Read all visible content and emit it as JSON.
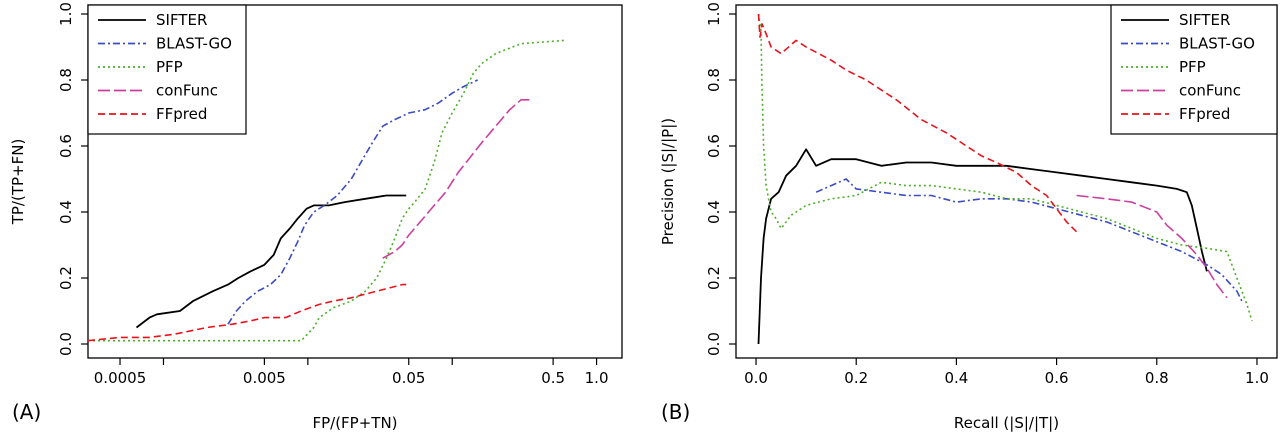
{
  "chart_data": [
    {
      "type": "line",
      "panel_label": "(A)",
      "xlabel": "FP/(FP+TN)",
      "ylabel": "TP/(TP+FN)",
      "xscale": "log",
      "xlim": [
        0.0003,
        1.5
      ],
      "ylim": [
        0,
        1
      ],
      "x_ticks": [
        0.0005,
        0.005,
        0.05,
        0.5,
        1.0
      ],
      "x_tick_labels": [
        "0.0005",
        "0.005",
        "0.05",
        "0.5",
        "1.0"
      ],
      "x_minor_ticks": [
        0.001,
        0.01,
        0.1
      ],
      "y_ticks": [
        0.0,
        0.2,
        0.4,
        0.6,
        0.8,
        1.0
      ],
      "y_tick_labels": [
        "0.0",
        "0.2",
        "0.4",
        "0.6",
        "0.8",
        "1.0"
      ],
      "legend_position": "top-left",
      "series": [
        {
          "name": "SIFTER",
          "color": "#000000",
          "dash": "solid",
          "points": [
            [
              0.00065,
              0.05
            ],
            [
              0.0008,
              0.08
            ],
            [
              0.0009,
              0.09
            ],
            [
              0.0013,
              0.1
            ],
            [
              0.0016,
              0.13
            ],
            [
              0.0022,
              0.16
            ],
            [
              0.0028,
              0.18
            ],
            [
              0.0033,
              0.2
            ],
            [
              0.004,
              0.22
            ],
            [
              0.005,
              0.24
            ],
            [
              0.0058,
              0.27
            ],
            [
              0.0065,
              0.32
            ],
            [
              0.0075,
              0.35
            ],
            [
              0.0085,
              0.38
            ],
            [
              0.0098,
              0.41
            ],
            [
              0.011,
              0.42
            ],
            [
              0.014,
              0.42
            ],
            [
              0.018,
              0.43
            ],
            [
              0.025,
              0.44
            ],
            [
              0.035,
              0.45
            ],
            [
              0.048,
              0.45
            ]
          ]
        },
        {
          "name": "BLAST-GO",
          "color": "#3b4cc0",
          "dash": "dashdot",
          "points": [
            [
              0.0028,
              0.06
            ],
            [
              0.0032,
              0.1
            ],
            [
              0.0037,
              0.13
            ],
            [
              0.0045,
              0.16
            ],
            [
              0.0055,
              0.18
            ],
            [
              0.0065,
              0.21
            ],
            [
              0.0075,
              0.26
            ],
            [
              0.0085,
              0.31
            ],
            [
              0.0095,
              0.36
            ],
            [
              0.011,
              0.4
            ],
            [
              0.013,
              0.42
            ],
            [
              0.016,
              0.45
            ],
            [
              0.02,
              0.5
            ],
            [
              0.024,
              0.56
            ],
            [
              0.028,
              0.61
            ],
            [
              0.033,
              0.66
            ],
            [
              0.04,
              0.68
            ],
            [
              0.05,
              0.7
            ],
            [
              0.065,
              0.71
            ],
            [
              0.08,
              0.73
            ],
            [
              0.1,
              0.76
            ],
            [
              0.12,
              0.78
            ],
            [
              0.15,
              0.8
            ]
          ]
        },
        {
          "name": "PFP",
          "color": "#4caf2a",
          "dash": "dotted",
          "points": [
            [
              0.0003,
              0.01
            ],
            [
              0.001,
              0.01
            ],
            [
              0.003,
              0.01
            ],
            [
              0.006,
              0.01
            ],
            [
              0.009,
              0.01
            ],
            [
              0.011,
              0.05
            ],
            [
              0.012,
              0.08
            ],
            [
              0.015,
              0.11
            ],
            [
              0.02,
              0.13
            ],
            [
              0.025,
              0.16
            ],
            [
              0.03,
              0.2
            ],
            [
              0.035,
              0.26
            ],
            [
              0.04,
              0.32
            ],
            [
              0.045,
              0.38
            ],
            [
              0.05,
              0.41
            ],
            [
              0.055,
              0.43
            ],
            [
              0.065,
              0.47
            ],
            [
              0.075,
              0.55
            ],
            [
              0.085,
              0.64
            ],
            [
              0.1,
              0.7
            ],
            [
              0.12,
              0.76
            ],
            [
              0.14,
              0.82
            ],
            [
              0.16,
              0.85
            ],
            [
              0.2,
              0.88
            ],
            [
              0.3,
              0.91
            ],
            [
              0.6,
              0.92
            ]
          ]
        },
        {
          "name": "conFunc",
          "color": "#cc3fa0",
          "dash": "longdash",
          "points": [
            [
              0.033,
              0.26
            ],
            [
              0.04,
              0.28
            ],
            [
              0.045,
              0.3
            ],
            [
              0.05,
              0.33
            ],
            [
              0.06,
              0.37
            ],
            [
              0.075,
              0.42
            ],
            [
              0.09,
              0.46
            ],
            [
              0.11,
              0.52
            ],
            [
              0.13,
              0.56
            ],
            [
              0.16,
              0.61
            ],
            [
              0.2,
              0.66
            ],
            [
              0.25,
              0.71
            ],
            [
              0.3,
              0.74
            ],
            [
              0.35,
              0.74
            ]
          ]
        },
        {
          "name": "FFpred",
          "color": "#e8131d",
          "dash": "dashed",
          "points": [
            [
              0.0003,
              0.01
            ],
            [
              0.0005,
              0.02
            ],
            [
              0.0008,
              0.02
            ],
            [
              0.0012,
              0.03
            ],
            [
              0.002,
              0.05
            ],
            [
              0.003,
              0.06
            ],
            [
              0.004,
              0.07
            ],
            [
              0.005,
              0.08
            ],
            [
              0.007,
              0.08
            ],
            [
              0.009,
              0.1
            ],
            [
              0.012,
              0.12
            ],
            [
              0.015,
              0.13
            ],
            [
              0.02,
              0.14
            ],
            [
              0.03,
              0.16
            ],
            [
              0.045,
              0.18
            ],
            [
              0.048,
              0.18
            ]
          ]
        }
      ]
    },
    {
      "type": "line",
      "panel_label": "(B)",
      "xlabel": "Recall (|S|/|T|)",
      "ylabel": "Precision (|S|/|P|)",
      "xscale": "linear",
      "xlim": [
        -0.04,
        1.04
      ],
      "ylim": [
        0,
        1
      ],
      "x_ticks": [
        0.0,
        0.2,
        0.4,
        0.6,
        0.8,
        1.0
      ],
      "x_tick_labels": [
        "0.0",
        "0.2",
        "0.4",
        "0.6",
        "0.8",
        "1.0"
      ],
      "y_ticks": [
        0.0,
        0.2,
        0.4,
        0.6,
        0.8,
        1.0
      ],
      "y_tick_labels": [
        "0.0",
        "0.2",
        "0.4",
        "0.6",
        "0.8",
        "1.0"
      ],
      "legend_position": "top-right",
      "series": [
        {
          "name": "SIFTER",
          "color": "#000000",
          "dash": "solid",
          "points": [
            [
              0.005,
              0.0
            ],
            [
              0.01,
              0.2
            ],
            [
              0.015,
              0.32
            ],
            [
              0.02,
              0.38
            ],
            [
              0.03,
              0.44
            ],
            [
              0.045,
              0.46
            ],
            [
              0.06,
              0.51
            ],
            [
              0.08,
              0.54
            ],
            [
              0.1,
              0.59
            ],
            [
              0.12,
              0.54
            ],
            [
              0.15,
              0.56
            ],
            [
              0.2,
              0.56
            ],
            [
              0.25,
              0.54
            ],
            [
              0.3,
              0.55
            ],
            [
              0.35,
              0.55
            ],
            [
              0.4,
              0.54
            ],
            [
              0.45,
              0.54
            ],
            [
              0.5,
              0.54
            ],
            [
              0.55,
              0.53
            ],
            [
              0.6,
              0.52
            ],
            [
              0.65,
              0.51
            ],
            [
              0.7,
              0.5
            ],
            [
              0.75,
              0.49
            ],
            [
              0.8,
              0.48
            ],
            [
              0.84,
              0.47
            ],
            [
              0.86,
              0.46
            ],
            [
              0.87,
              0.42
            ],
            [
              0.88,
              0.35
            ],
            [
              0.89,
              0.28
            ],
            [
              0.9,
              0.22
            ]
          ]
        },
        {
          "name": "BLAST-GO",
          "color": "#3b4cc0",
          "dash": "dashdot",
          "points": [
            [
              0.12,
              0.46
            ],
            [
              0.15,
              0.48
            ],
            [
              0.18,
              0.5
            ],
            [
              0.2,
              0.47
            ],
            [
              0.25,
              0.46
            ],
            [
              0.3,
              0.45
            ],
            [
              0.35,
              0.45
            ],
            [
              0.4,
              0.43
            ],
            [
              0.45,
              0.44
            ],
            [
              0.5,
              0.44
            ],
            [
              0.55,
              0.43
            ],
            [
              0.6,
              0.41
            ],
            [
              0.65,
              0.39
            ],
            [
              0.7,
              0.37
            ],
            [
              0.75,
              0.34
            ],
            [
              0.8,
              0.31
            ],
            [
              0.85,
              0.28
            ],
            [
              0.9,
              0.24
            ],
            [
              0.93,
              0.21
            ],
            [
              0.96,
              0.16
            ],
            [
              0.97,
              0.13
            ]
          ]
        },
        {
          "name": "PFP",
          "color": "#4caf2a",
          "dash": "dotted",
          "points": [
            [
              0.005,
              1.0
            ],
            [
              0.01,
              0.95
            ],
            [
              0.012,
              0.78
            ],
            [
              0.015,
              0.6
            ],
            [
              0.02,
              0.48
            ],
            [
              0.03,
              0.4
            ],
            [
              0.04,
              0.38
            ],
            [
              0.05,
              0.35
            ],
            [
              0.07,
              0.39
            ],
            [
              0.1,
              0.42
            ],
            [
              0.15,
              0.44
            ],
            [
              0.2,
              0.45
            ],
            [
              0.25,
              0.49
            ],
            [
              0.3,
              0.48
            ],
            [
              0.35,
              0.48
            ],
            [
              0.4,
              0.47
            ],
            [
              0.45,
              0.46
            ],
            [
              0.5,
              0.44
            ],
            [
              0.55,
              0.44
            ],
            [
              0.6,
              0.42
            ],
            [
              0.65,
              0.4
            ],
            [
              0.7,
              0.38
            ],
            [
              0.75,
              0.35
            ],
            [
              0.8,
              0.32
            ],
            [
              0.85,
              0.3
            ],
            [
              0.9,
              0.29
            ],
            [
              0.94,
              0.28
            ],
            [
              0.96,
              0.2
            ],
            [
              0.98,
              0.12
            ],
            [
              0.99,
              0.07
            ]
          ]
        },
        {
          "name": "conFunc",
          "color": "#cc3fa0",
          "dash": "longdash",
          "points": [
            [
              0.64,
              0.45
            ],
            [
              0.7,
              0.44
            ],
            [
              0.75,
              0.43
            ],
            [
              0.8,
              0.4
            ],
            [
              0.82,
              0.36
            ],
            [
              0.85,
              0.32
            ],
            [
              0.88,
              0.27
            ],
            [
              0.9,
              0.23
            ],
            [
              0.92,
              0.18
            ],
            [
              0.94,
              0.14
            ]
          ]
        },
        {
          "name": "FFpred",
          "color": "#e8131d",
          "dash": "dashed",
          "points": [
            [
              0.005,
              1.0
            ],
            [
              0.008,
              0.93
            ],
            [
              0.012,
              0.97
            ],
            [
              0.02,
              0.94
            ],
            [
              0.03,
              0.9
            ],
            [
              0.05,
              0.88
            ],
            [
              0.08,
              0.92
            ],
            [
              0.1,
              0.9
            ],
            [
              0.15,
              0.86
            ],
            [
              0.18,
              0.83
            ],
            [
              0.22,
              0.8
            ],
            [
              0.28,
              0.74
            ],
            [
              0.33,
              0.68
            ],
            [
              0.38,
              0.64
            ],
            [
              0.42,
              0.6
            ],
            [
              0.45,
              0.57
            ],
            [
              0.48,
              0.55
            ],
            [
              0.52,
              0.52
            ],
            [
              0.55,
              0.48
            ],
            [
              0.58,
              0.45
            ],
            [
              0.6,
              0.41
            ],
            [
              0.62,
              0.37
            ],
            [
              0.64,
              0.34
            ]
          ]
        }
      ]
    }
  ]
}
